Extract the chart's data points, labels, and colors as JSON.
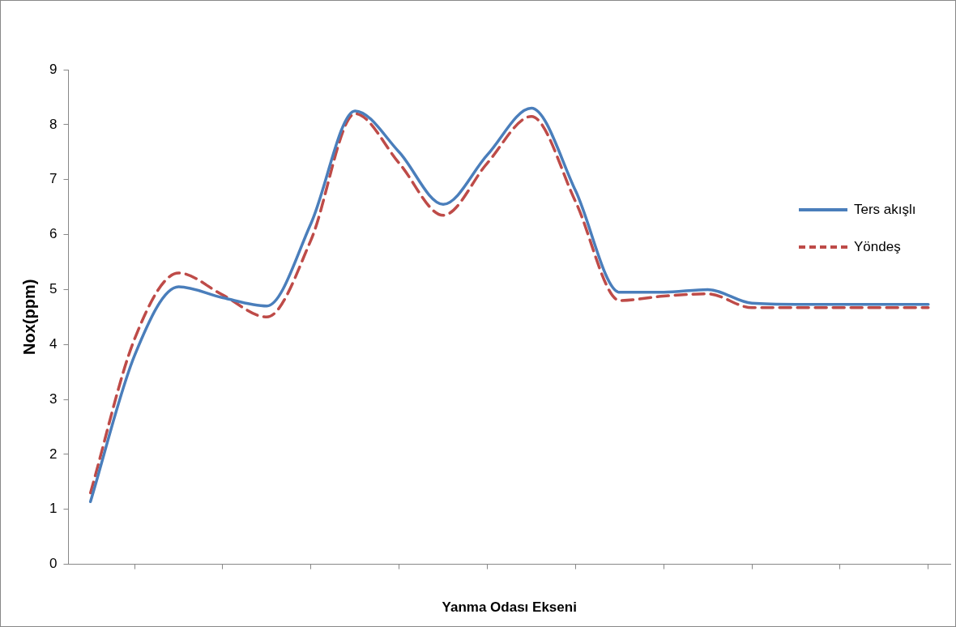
{
  "chart_data": {
    "type": "line",
    "xlabel": "Yanma Odası Ekseni",
    "ylabel": "Nox(ppm)",
    "categories": [
      null,
      null,
      null,
      null,
      null,
      null,
      null,
      null,
      null,
      null,
      null,
      null,
      null,
      null,
      null,
      null,
      null,
      null,
      null,
      null
    ],
    "ylim": [
      0,
      9
    ],
    "yticks": [
      0,
      1,
      2,
      3,
      4,
      5,
      6,
      7,
      8,
      9
    ],
    "grid": false,
    "legend": "right",
    "marker": "none",
    "series": [
      {
        "name": "Ters akışlı",
        "color": "#4a7ebb",
        "line_style": "solid",
        "values": [
          1.14,
          3.8,
          5.05,
          4.85,
          4.7,
          6.2,
          8.25,
          7.5,
          6.55,
          7.45,
          8.3,
          6.8,
          4.95,
          4.95,
          5.0,
          4.75,
          4.73,
          4.73,
          4.73,
          4.73
        ]
      },
      {
        "name": "Yöndeş",
        "color": "#be4b48",
        "line_style": "dashed",
        "values": [
          1.3,
          4.1,
          5.3,
          4.9,
          4.5,
          5.9,
          8.2,
          7.3,
          6.35,
          7.3,
          8.15,
          6.6,
          4.8,
          4.88,
          4.92,
          4.67,
          4.67,
          4.67,
          4.67,
          4.67
        ]
      }
    ]
  }
}
